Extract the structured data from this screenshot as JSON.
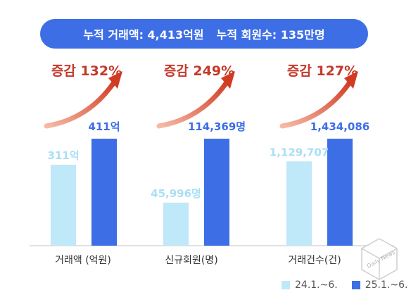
{
  "banner": {
    "left": "누적 거래액: 4,413억원",
    "right": "누적 회원수: 135만명",
    "color": "#3d6ee6"
  },
  "colors": {
    "light": "#bfe8f8",
    "dark": "#3d6ee6",
    "light_label": "#a9dff4",
    "dark_label": "#3d6ee6",
    "growth": "#c43a2a",
    "arrow_start": "#f6b9a6",
    "arrow_end": "#d23b22"
  },
  "legend": [
    {
      "label": "24.1.~6.",
      "color": "#bfe8f8"
    },
    {
      "label": "25.1.~6.",
      "color": "#3d6ee6"
    }
  ],
  "watermark": {
    "text": "Daily News",
    "icon": "cube-logo-icon"
  },
  "chart_data": {
    "type": "bar",
    "note_scale": "independent",
    "groups": [
      {
        "category": "거래액 (억원)",
        "values": [
          311,
          411
        ],
        "value_labels": [
          "311억",
          "411억"
        ],
        "growth": "증감 132%"
      },
      {
        "category": "신규회원(명)",
        "values": [
          45996,
          114369
        ],
        "value_labels": [
          "45,996명",
          "114,369명"
        ],
        "growth": "증감 249%"
      },
      {
        "category": "거래건수(건)",
        "values": [
          1129707,
          1434086
        ],
        "value_labels": [
          "1,129,707",
          "1,434,086"
        ],
        "growth": "증감 127%"
      }
    ],
    "series": [
      {
        "name": "24.1.~6."
      },
      {
        "name": "25.1.~6."
      }
    ]
  }
}
